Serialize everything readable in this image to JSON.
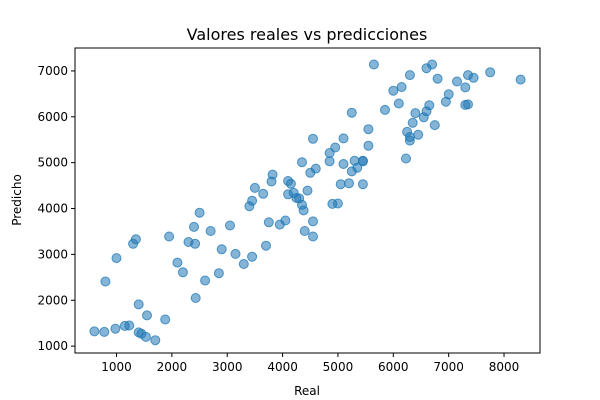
{
  "chart_data": {
    "type": "scatter",
    "title": "Valores reales vs predicciones",
    "xlabel": "Real",
    "ylabel": "Predicho",
    "xlim": [
      250,
      8650
    ],
    "ylim": [
      850,
      7500
    ],
    "xticks": [
      1000,
      2000,
      3000,
      4000,
      5000,
      6000,
      7000,
      8000
    ],
    "yticks": [
      1000,
      2000,
      3000,
      4000,
      5000,
      6000,
      7000
    ],
    "grid": false,
    "point_color": "#1f77b4",
    "points": [
      [
        600,
        1320
      ],
      [
        780,
        1310
      ],
      [
        980,
        1380
      ],
      [
        1150,
        1440
      ],
      [
        1230,
        1450
      ],
      [
        1400,
        1300
      ],
      [
        1450,
        1270
      ],
      [
        1530,
        1200
      ],
      [
        1700,
        1130
      ],
      [
        1880,
        1580
      ],
      [
        1400,
        1910
      ],
      [
        1550,
        1670
      ],
      [
        800,
        2410
      ],
      [
        1000,
        2920
      ],
      [
        1300,
        3230
      ],
      [
        1350,
        3330
      ],
      [
        1950,
        3390
      ],
      [
        2100,
        2820
      ],
      [
        2200,
        2610
      ],
      [
        2300,
        3270
      ],
      [
        2400,
        3600
      ],
      [
        2420,
        3230
      ],
      [
        2500,
        3910
      ],
      [
        2430,
        2050
      ],
      [
        2600,
        2430
      ],
      [
        2700,
        3510
      ],
      [
        2850,
        2590
      ],
      [
        2900,
        3110
      ],
      [
        3050,
        3630
      ],
      [
        3150,
        3010
      ],
      [
        3300,
        2790
      ],
      [
        3400,
        4050
      ],
      [
        3450,
        2950
      ],
      [
        3500,
        4450
      ],
      [
        3450,
        4170
      ],
      [
        3650,
        4320
      ],
      [
        3700,
        3190
      ],
      [
        3750,
        3700
      ],
      [
        3800,
        4590
      ],
      [
        3820,
        4740
      ],
      [
        3950,
        3650
      ],
      [
        4050,
        3740
      ],
      [
        4100,
        4310
      ],
      [
        4100,
        4600
      ],
      [
        4150,
        4540
      ],
      [
        4200,
        4340
      ],
      [
        4250,
        4230
      ],
      [
        4300,
        4220
      ],
      [
        4350,
        4080
      ],
      [
        4380,
        3960
      ],
      [
        4350,
        5010
      ],
      [
        4400,
        3510
      ],
      [
        4450,
        4390
      ],
      [
        4500,
        4780
      ],
      [
        4550,
        5520
      ],
      [
        4550,
        3390
      ],
      [
        4550,
        3720
      ],
      [
        4600,
        4870
      ],
      [
        4850,
        5210
      ],
      [
        4900,
        4100
      ],
      [
        4850,
        5030
      ],
      [
        4950,
        5330
      ],
      [
        5000,
        4110
      ],
      [
        5050,
        4530
      ],
      [
        5100,
        4970
      ],
      [
        5100,
        5530
      ],
      [
        5200,
        4550
      ],
      [
        5250,
        4810
      ],
      [
        5250,
        6090
      ],
      [
        5350,
        4890
      ],
      [
        5300,
        5040
      ],
      [
        5450,
        5040
      ],
      [
        5450,
        5030
      ],
      [
        5450,
        4530
      ],
      [
        5550,
        5370
      ],
      [
        5550,
        5730
      ],
      [
        5650,
        7140
      ],
      [
        5850,
        6150
      ],
      [
        6000,
        6570
      ],
      [
        6100,
        6290
      ],
      [
        6150,
        6650
      ],
      [
        6230,
        5090
      ],
      [
        6250,
        5670
      ],
      [
        6300,
        6910
      ],
      [
        6300,
        5560
      ],
      [
        6300,
        5480
      ],
      [
        6350,
        5870
      ],
      [
        6400,
        6080
      ],
      [
        6450,
        5610
      ],
      [
        6550,
        5990
      ],
      [
        6600,
        7060
      ],
      [
        6600,
        6120
      ],
      [
        6650,
        6250
      ],
      [
        6700,
        7140
      ],
      [
        6750,
        5820
      ],
      [
        6800,
        6830
      ],
      [
        6950,
        6330
      ],
      [
        7000,
        6490
      ],
      [
        7150,
        6770
      ],
      [
        7300,
        6260
      ],
      [
        7350,
        6270
      ],
      [
        7300,
        6640
      ],
      [
        7350,
        6910
      ],
      [
        7450,
        6850
      ],
      [
        7750,
        6970
      ],
      [
        8300,
        6810
      ]
    ]
  }
}
